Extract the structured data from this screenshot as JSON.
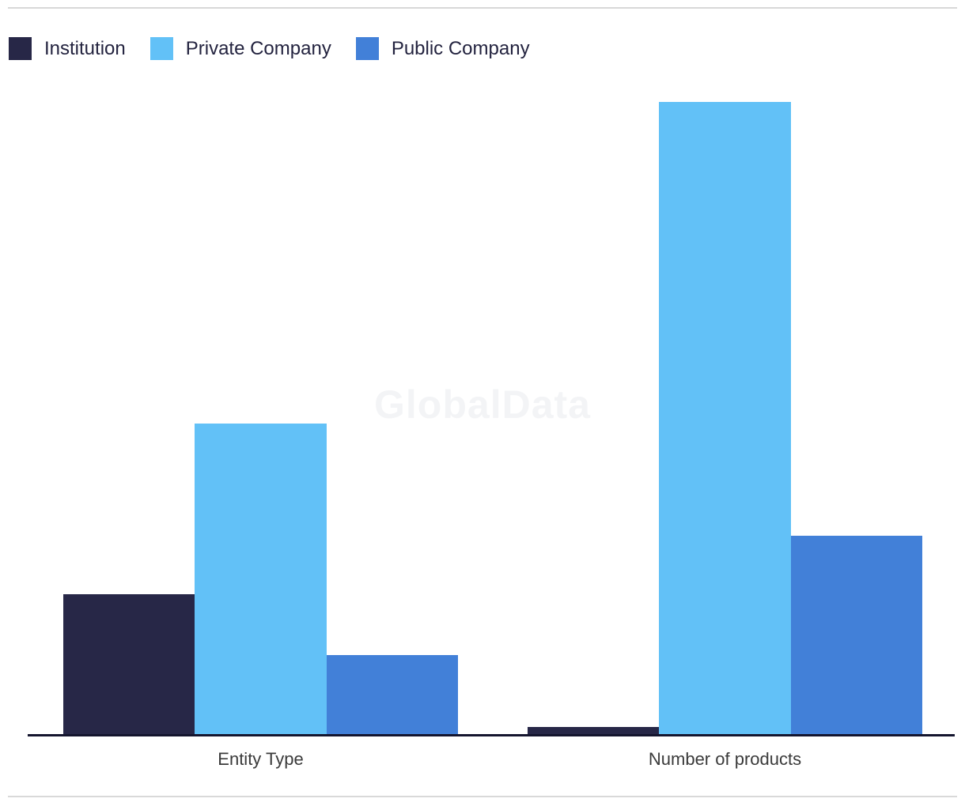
{
  "frame": {
    "top_border_color": "#d8d8d8",
    "bottom_border_color": "#d9d9d9",
    "background": "#ffffff"
  },
  "watermark": {
    "text": "GlobalData",
    "color": "#f3f4f6"
  },
  "legend": {
    "position": "top-left",
    "text_color": "#23233f",
    "items": [
      {
        "label": "Institution",
        "color": "#272747"
      },
      {
        "label": "Private Company",
        "color": "#62c1f7"
      },
      {
        "label": "Public Company",
        "color": "#4280d8"
      }
    ]
  },
  "chart_data": {
    "type": "bar",
    "categories": [
      "Entity Type",
      "Number of products"
    ],
    "series": [
      {
        "name": "Institution",
        "color": "#272747",
        "values": [
          177,
          9
        ]
      },
      {
        "name": "Private Company",
        "color": "#62c1f7",
        "values": [
          393,
          800
        ]
      },
      {
        "name": "Public Company",
        "color": "#4280d8",
        "values": [
          100,
          251
        ]
      }
    ],
    "ylim": [
      0,
      800
    ],
    "note": "No numeric axis, gridlines or data labels are shown; values are relative heights estimated from pixels (baseline = 0).",
    "grid": false,
    "legend_position": "top-left",
    "axis_line_color": "#14152e",
    "category_label_color": "#3a3a3a"
  }
}
